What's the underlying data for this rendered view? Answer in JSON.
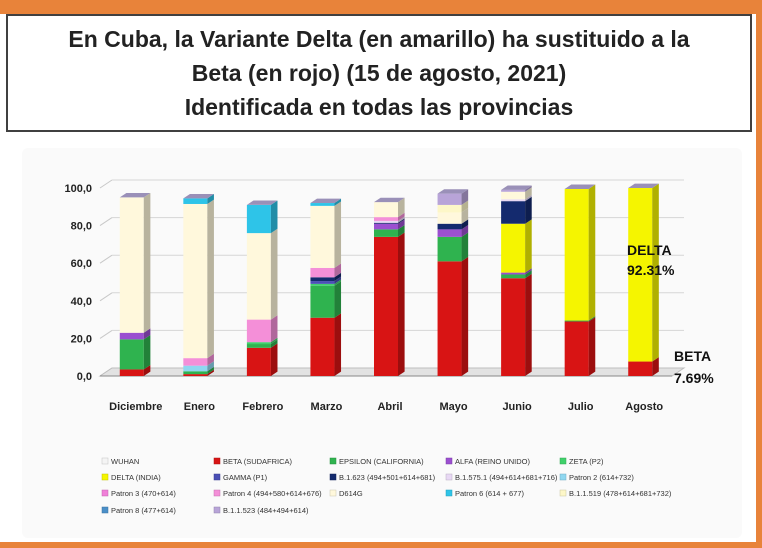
{
  "title": {
    "line1": "En Cuba, la Variante Delta (en amarillo) ha sustituido a la",
    "line2": "Beta (en rojo) (15 de agosto, 2021)",
    "line3": "Identificada en todas las provincias"
  },
  "annotations": {
    "delta_label": "DELTA",
    "delta_value": "92.31%",
    "beta_label": "BETA",
    "beta_value": "7.69%"
  },
  "chart_data": {
    "type": "bar",
    "stacked": true,
    "three_d": true,
    "categories": [
      "Diciembre",
      "Enero",
      "Febrero",
      "Marzo",
      "Abril",
      "Mayo",
      "Junio",
      "Julio",
      "Agosto"
    ],
    "ylim": [
      0,
      100
    ],
    "yticks": [
      "0,0",
      "20,0",
      "40,0",
      "60,0",
      "80,0",
      "100,0"
    ],
    "legend_position": "bottom",
    "series": [
      {
        "name": "WUHAN",
        "color": "#f4f4f4",
        "values": [
          0,
          0,
          0,
          0,
          0,
          0,
          0,
          0,
          0
        ]
      },
      {
        "name": "BETA (SUDAFRICA)",
        "color": "#d81414",
        "values": [
          3.5,
          1,
          15,
          31,
          74,
          61,
          52,
          29,
          7.69
        ]
      },
      {
        "name": "EPSILON (CALIFORNIA)",
        "color": "#2fb34f",
        "values": [
          16,
          1.5,
          2,
          17,
          4,
          13,
          2,
          0.5,
          0
        ]
      },
      {
        "name": "ALFA (REINO UNIDO)",
        "color": "#9b4fd0",
        "values": [
          3.5,
          0,
          0,
          0,
          3,
          4,
          1,
          0,
          0
        ]
      },
      {
        "name": "ZETA (P2)",
        "color": "#3fd06a",
        "values": [
          0,
          0,
          1,
          1,
          0,
          0,
          0,
          0,
          0
        ]
      },
      {
        "name": "DELTA (INDIA)",
        "color": "#f5f500",
        "values": [
          0,
          0,
          0,
          0,
          0,
          0,
          26,
          70,
          92.31
        ]
      },
      {
        "name": "GAMMA (P1)",
        "color": "#4a4fb5",
        "values": [
          0,
          0,
          0,
          1.5,
          0,
          0,
          0,
          0,
          0
        ]
      },
      {
        "name": "B.1.623 (494+501+614+681)",
        "color": "#142a6e",
        "values": [
          0,
          0,
          0,
          2,
          0.5,
          3,
          12,
          0,
          0
        ]
      },
      {
        "name": "B.1.575.1 (494+614+681+716)",
        "color": "#e8d8f4",
        "values": [
          0,
          0,
          0,
          0,
          1,
          0,
          1,
          0,
          0
        ]
      },
      {
        "name": "Patron 2 (614+732)",
        "color": "#8fd7f0",
        "values": [
          0,
          3,
          0,
          0,
          0,
          0,
          0,
          0,
          0
        ]
      },
      {
        "name": "Patron 3 (470+614)",
        "color": "#f07fd8",
        "values": [
          0,
          0,
          0,
          0,
          0,
          0,
          0,
          0,
          0
        ]
      },
      {
        "name": "Patron 4 (494+580+614+676)",
        "color": "#f48fd8",
        "values": [
          0,
          4,
          12,
          5,
          2,
          0,
          0,
          0,
          0
        ]
      },
      {
        "name": "D614G",
        "color": "#fff8dc",
        "values": [
          72,
          82,
          46,
          33,
          8,
          6,
          4,
          0,
          0
        ]
      },
      {
        "name": "Patron 6 (614 + 677)",
        "color": "#2ec4e8",
        "values": [
          0,
          3,
          15,
          1.5,
          0,
          0,
          0,
          0,
          0
        ]
      },
      {
        "name": "B.1.1.519 (478+614+681+732)",
        "color": "#fdf7c8",
        "values": [
          0,
          0,
          0,
          0,
          0,
          4,
          0,
          0,
          0
        ]
      },
      {
        "name": "Patron 8 (477+614)",
        "color": "#4a8fc8",
        "values": [
          0,
          0,
          0,
          0,
          0,
          0,
          0,
          0,
          0
        ]
      },
      {
        "name": "B.1.1.523 (484+494+614)",
        "color": "#b8a4d8",
        "values": [
          0,
          0,
          0,
          0,
          0,
          6,
          1,
          0,
          0
        ]
      }
    ]
  }
}
